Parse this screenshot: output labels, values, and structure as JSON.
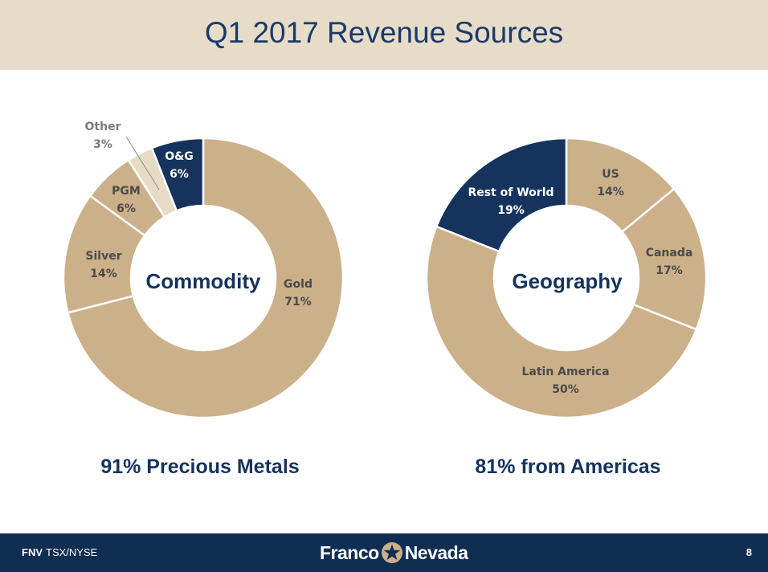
{
  "header": {
    "title": "Q1 2017 Revenue Sources"
  },
  "colors": {
    "tan": "#cbb08a",
    "navy": "#16335e",
    "light": "#e6dcc5",
    "band": "#e6dcc8",
    "footer": "#0f2e52"
  },
  "chart_data": [
    {
      "type": "pie",
      "subtype": "donut",
      "center_label": "Commodity",
      "slices": [
        {
          "label": "Gold",
          "value": 71,
          "pct": "71%",
          "color": "#cbb08a"
        },
        {
          "label": "Silver",
          "value": 14,
          "pct": "14%",
          "color": "#cbb08a"
        },
        {
          "label": "PGM",
          "value": 6,
          "pct": "6%",
          "color": "#cbb08a"
        },
        {
          "label": "Other",
          "value": 3,
          "pct": "3%",
          "color": "#e6dcc5"
        },
        {
          "label": "O&G",
          "value": 6,
          "pct": "6%",
          "color": "#16335e"
        }
      ]
    },
    {
      "type": "pie",
      "subtype": "donut",
      "center_label": "Geography",
      "slices": [
        {
          "label": "US",
          "value": 14,
          "pct": "14%",
          "color": "#cbb08a"
        },
        {
          "label": "Canada",
          "value": 17,
          "pct": "17%",
          "color": "#cbb08a"
        },
        {
          "label": "Latin America",
          "value": 50,
          "pct": "50%",
          "color": "#cbb08a"
        },
        {
          "label": "Rest of World",
          "value": 19,
          "pct": "19%",
          "color": "#16335e"
        }
      ]
    }
  ],
  "captions": {
    "left": "91% Precious Metals",
    "right": "81% from Americas"
  },
  "footer": {
    "ticker_symbol": "FNV",
    "ticker_exchange": "TSX/NYSE",
    "logo_left": "Franco",
    "logo_right": "Nevada",
    "page_number": "8"
  }
}
